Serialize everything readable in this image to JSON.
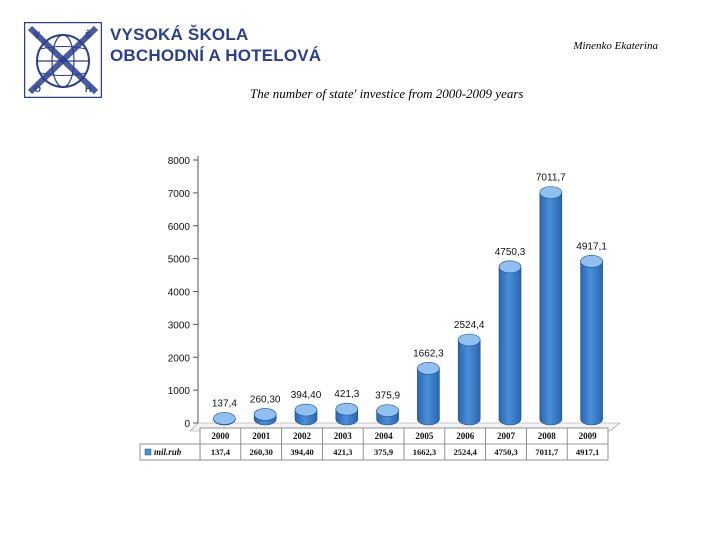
{
  "header": {
    "school_line1": "VYSOKÁ ŠKOLA",
    "school_line2": "OBCHODNÍ A HOTELOVÁ",
    "author": "Minenko Ekaterina",
    "logo_letters": [
      "V",
      "Š",
      "O",
      "H"
    ]
  },
  "colors": {
    "school_text": "#2a3f8f",
    "bar_body": "#4a8fd8",
    "bar_dark": "#2a65b0",
    "bar_top": "#8fc0f0"
  },
  "chart_data": {
    "type": "bar",
    "title": "The number of  state' investice from 2000-2009 years",
    "categories": [
      "2000",
      "2001",
      "2002",
      "2003",
      "2004",
      "2005",
      "2006",
      "2007",
      "2008",
      "2009"
    ],
    "values": [
      137.4,
      260.3,
      394.4,
      421.3,
      375.9,
      1662.3,
      2524.4,
      4750.3,
      7011.7,
      4917.1
    ],
    "data_labels": [
      "137,4",
      "260,30",
      "394,40",
      "421,3",
      "375,9",
      "1662,3",
      "2524,4",
      "4750,3",
      "7011,7",
      "4917,1"
    ],
    "table_labels": [
      "137,4",
      "260,30",
      "394,40",
      "421,3",
      "375,9",
      "1662,3",
      "2524,4",
      "4750,3",
      "7011,7",
      "4917,1"
    ],
    "series": [
      {
        "name": "mil.rub"
      }
    ],
    "yticks": [
      0,
      1000,
      2000,
      3000,
      4000,
      5000,
      6000,
      7000,
      8000
    ],
    "ylim": [
      0,
      8000
    ],
    "grid": false,
    "legend": "data-table-left"
  }
}
